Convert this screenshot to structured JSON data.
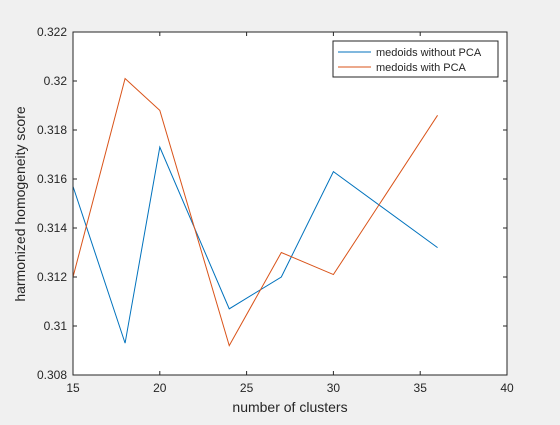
{
  "chart_data": {
    "type": "line",
    "xlabel": "number of clusters",
    "ylabel": "harmonized homogeneity score",
    "xlim": [
      15,
      40
    ],
    "ylim": [
      0.308,
      0.322
    ],
    "xticks": [
      15,
      20,
      25,
      30,
      35,
      40
    ],
    "xtick_labels": [
      "15",
      "20",
      "25",
      "30",
      "35",
      "40"
    ],
    "yticks": [
      0.308,
      0.31,
      0.312,
      0.314,
      0.316,
      0.318,
      0.32,
      0.322
    ],
    "ytick_labels": [
      "0.308",
      "0.31",
      "0.312",
      "0.314",
      "0.316",
      "0.318",
      "0.32",
      "0.322"
    ],
    "grid": false,
    "legend_position": "top-right",
    "series": [
      {
        "name": "medoids without PCA",
        "color": "#0072bd",
        "x": [
          15,
          18,
          20,
          24,
          27,
          30,
          36
        ],
        "y": [
          0.3157,
          0.3093,
          0.3173,
          0.3107,
          0.312,
          0.3163,
          0.3132
        ]
      },
      {
        "name": "medoids with PCA",
        "color": "#d95319",
        "x": [
          15,
          18,
          20,
          24,
          27,
          30,
          36
        ],
        "y": [
          0.312,
          0.3201,
          0.3188,
          0.3092,
          0.313,
          0.3121,
          0.3186
        ]
      }
    ]
  }
}
